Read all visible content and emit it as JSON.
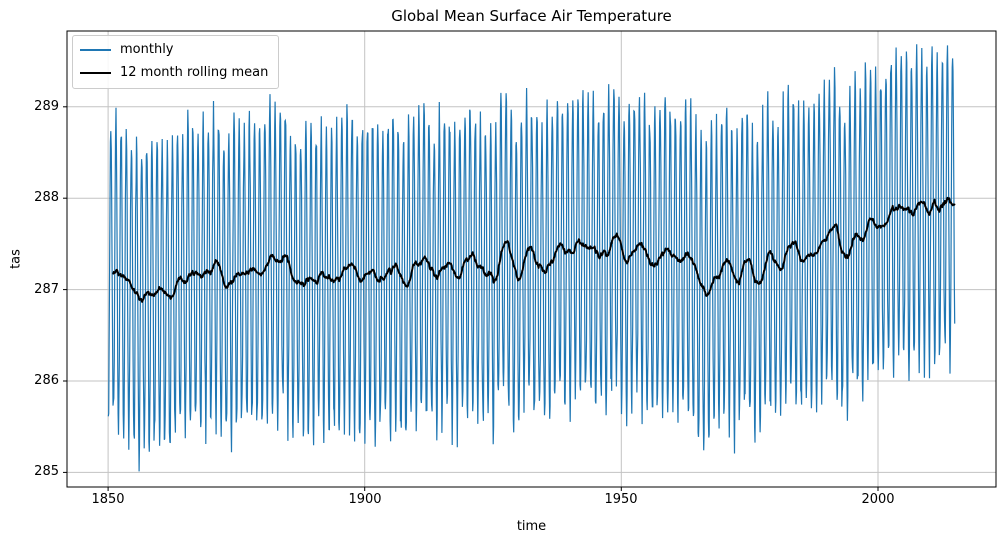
{
  "chart_data": {
    "type": "line",
    "title": "Global Mean Surface Air Temperature",
    "xlabel": "time",
    "ylabel": "tas",
    "xlim": [
      1842,
      2023
    ],
    "ylim": [
      284.84,
      289.83
    ],
    "xticks": [
      1850,
      1900,
      1950,
      2000
    ],
    "yticks": [
      285,
      286,
      287,
      288,
      289
    ],
    "grid": true,
    "grid_color": "#c3c3c3",
    "axis_color": "#000000",
    "background": "#ffffff",
    "legend": {
      "position": "upper-left",
      "entries": [
        {
          "label": "monthly",
          "color": "#1f77b4",
          "line_width": 1.3
        },
        {
          "label": "12 month rolling mean",
          "color": "#000000",
          "line_width": 2
        }
      ]
    },
    "series": [
      {
        "name": "monthly",
        "color": "#1f77b4",
        "start_year": 1850,
        "end_year": 2014,
        "points_per_year": 12,
        "seasonal_cycle": {
          "trough_month": "January",
          "peak_month": "July",
          "peak_offset": 1.64,
          "trough_offset": -1.66,
          "noise_amplitude": {
            "mid": 0.09,
            "peak": 0.18,
            "trough": 0.25
          },
          "typical_peak_1850s": 288.8,
          "typical_trough_1850s": 285.5,
          "typical_peak_2010s": 289.6,
          "typical_trough_2010s": 286.3,
          "overall_min": 285.0,
          "overall_max": 289.6
        }
      },
      {
        "name": "12 month rolling mean",
        "color": "#000000",
        "window_months": 12,
        "start_point": {
          "year": 1850.9,
          "value": 287.2
        },
        "end_point": {
          "year": 2014.9,
          "value": 287.9
        },
        "min_point": {
          "year": 1966,
          "value": 286.9
        },
        "max_point": {
          "year": 2008,
          "value": 288.05
        }
      }
    ],
    "annual_mean_12mo": {
      "start_year": 1850,
      "values": [
        287.22,
        287.2,
        287.15,
        287.1,
        286.98,
        286.92,
        286.92,
        286.95,
        286.9,
        287.0,
        286.98,
        286.9,
        287.0,
        287.12,
        287.05,
        287.15,
        287.2,
        287.15,
        287.22,
        287.2,
        287.32,
        287.18,
        287.05,
        287.08,
        287.12,
        287.18,
        287.15,
        287.22,
        287.25,
        287.12,
        287.3,
        287.42,
        287.25,
        287.35,
        287.4,
        287.1,
        287.05,
        287.08,
        287.05,
        287.08,
        287.1,
        287.22,
        287.1,
        287.05,
        287.12,
        287.15,
        287.28,
        287.3,
        287.1,
        287.15,
        287.25,
        287.2,
        287.12,
        287.08,
        287.15,
        287.3,
        287.2,
        287.08,
        287.15,
        287.25,
        287.3,
        287.38,
        287.2,
        287.12,
        287.25,
        287.32,
        287.2,
        287.1,
        287.2,
        287.35,
        287.4,
        287.3,
        287.2,
        287.15,
        287.08,
        287.2,
        287.45,
        287.5,
        287.3,
        287.1,
        287.25,
        287.45,
        287.42,
        287.25,
        287.2,
        287.3,
        287.4,
        287.45,
        287.42,
        287.4,
        287.45,
        287.5,
        287.45,
        287.4,
        287.42,
        287.35,
        287.38,
        287.45,
        287.6,
        287.5,
        287.3,
        287.35,
        287.45,
        287.48,
        287.35,
        287.25,
        287.25,
        287.4,
        287.45,
        287.38,
        287.3,
        287.38,
        287.35,
        287.3,
        287.15,
        286.95,
        286.95,
        287.1,
        287.15,
        287.25,
        287.32,
        287.15,
        287.05,
        287.3,
        287.35,
        287.05,
        287.0,
        287.25,
        287.4,
        287.3,
        287.2,
        287.35,
        287.5,
        287.5,
        287.3,
        287.3,
        287.38,
        287.45,
        287.52,
        287.55,
        287.7,
        287.75,
        287.4,
        287.35,
        287.5,
        287.65,
        287.55,
        287.7,
        287.85,
        287.7,
        287.68,
        287.8,
        287.9,
        287.85,
        287.82,
        287.9,
        287.88,
        287.95,
        288.02,
        287.82,
        288.0,
        287.88,
        287.92,
        287.98,
        287.92
      ]
    }
  }
}
